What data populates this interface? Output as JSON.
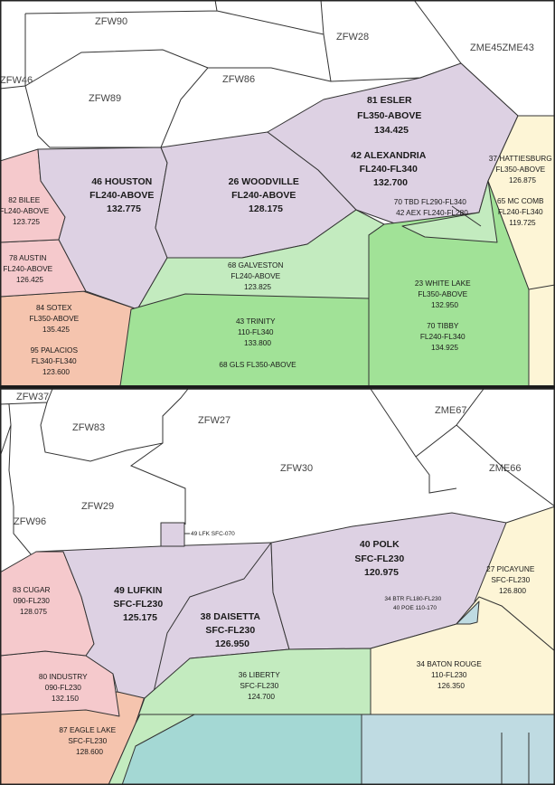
{
  "colors": {
    "purple": "#ddd1e3",
    "pink": "#f5c9cc",
    "salmon": "#f5c4ae",
    "light_green": "#c3ebbf",
    "bright_green": "#a1e297",
    "yellow": "#fdf5d6",
    "teal": "#a4d8d4",
    "steel": "#bfdbe2",
    "white": "#ffffff",
    "divider": "#1a1a1a"
  },
  "top_panel": {
    "zones": {
      "zfw90": "ZFW90",
      "zfw28": "ZFW28",
      "zme45": "ZME45ZME43",
      "zfw46": "ZFW46",
      "zfw89": "ZFW89",
      "zfw86": "ZFW86"
    },
    "esler": [
      "81 ESLER",
      "FL350-ABOVE",
      "134.425"
    ],
    "alexandria": [
      "42 ALEXANDRIA",
      "FL240-FL340",
      "132.700"
    ],
    "houston": [
      "46 HOUSTON",
      "FL240-ABOVE",
      "132.775"
    ],
    "woodville": [
      "26 WOODVILLE",
      "FL240-ABOVE",
      "128.175"
    ],
    "hattiesburg": [
      "37 HATTIESBURG",
      "FL350-ABOVE",
      "126.875"
    ],
    "mccomb": [
      "65 MC COMB",
      "FL240-FL340",
      "119.725"
    ],
    "tbd_aex": [
      "70 TBD FL290-FL340",
      "42 AEX FL240-FL280"
    ],
    "bilee": [
      "82 BILEE",
      "FL240-ABOVE",
      "123.725"
    ],
    "austin": [
      "78 AUSTIN",
      "FL240-ABOVE",
      "126.425"
    ],
    "galveston": [
      "68 GALVESTON",
      "FL240-ABOVE",
      "123.825"
    ],
    "white_lake": [
      "23 WHITE LAKE",
      "FL350-ABOVE",
      "132.950"
    ],
    "tibby": [
      "70 TIBBY",
      "FL240-FL340",
      "134.925"
    ],
    "sotex": [
      "84 SOTEX",
      "FL350-ABOVE",
      "135.425"
    ],
    "palacios": [
      "95 PALACIOS",
      "FL340-FL340",
      "123.600"
    ],
    "trinity": [
      "43 TRINITY",
      "110-FL340",
      "133.800"
    ],
    "gls": "68 GLS FL350-ABOVE"
  },
  "bottom_panel": {
    "zones": {
      "zfw37": "ZFW37",
      "zfw83": "ZFW83",
      "zfw27": "ZFW27",
      "zme67": "ZME67",
      "zfw30": "ZFW30",
      "zme66": "ZME66",
      "zfw29": "ZFW29",
      "zfw96": "ZFW96"
    },
    "lfk": "49 LFK SFC-070",
    "polk": [
      "40 POLK",
      "SFC-FL230",
      "120.975"
    ],
    "lufkin": [
      "49 LUFKIN",
      "SFC-FL230",
      "125.175"
    ],
    "daisetta": [
      "38 DAISETTA",
      "SFC-FL230",
      "126.950"
    ],
    "picayune": [
      "27 PICAYUNE",
      "SFC-FL230",
      "126.800"
    ],
    "btr_poe": [
      "34 BTR FL180-FL230",
      "40 POE 110-170"
    ],
    "cugar": [
      "83 CUGAR",
      "090-FL230",
      "128.075"
    ],
    "industry": [
      "80 INDUSTRY",
      "090-FL230",
      "132.150"
    ],
    "liberty": [
      "36 LIBERTY",
      "SFC-FL230",
      "124.700"
    ],
    "baton_rouge": [
      "34 BATON ROUGE",
      "110-FL230",
      "126.350"
    ],
    "eagle_lake": [
      "87 EAGLE LAKE",
      "SFC-FL230",
      "128.600"
    ]
  }
}
